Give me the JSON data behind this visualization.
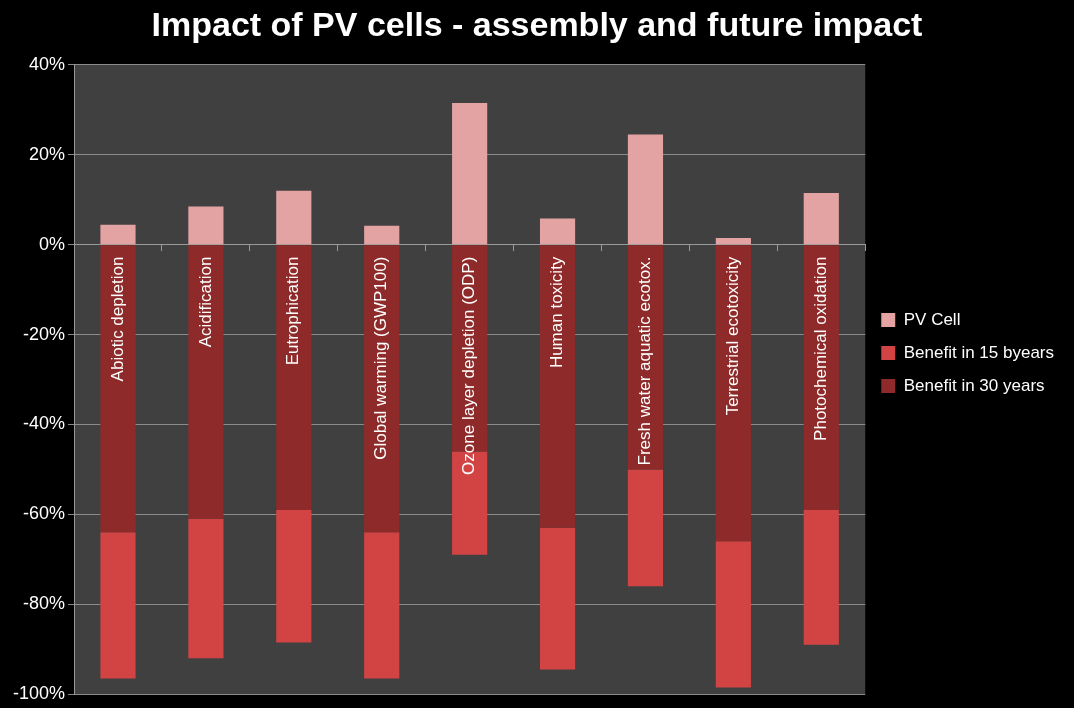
{
  "chart_data": {
    "type": "bar",
    "title": "Impact of PV cells - assembly and future impact",
    "categories": [
      "Abiotic depletion",
      "Acidification",
      "Eutrophication",
      "Global warming (GWP100)",
      "Ozone layer depletion (ODP)",
      "Human toxicity",
      "Fresh water aquatic ecotox.",
      "Terrestrial ecotoxicity",
      "Photochemical oxidation"
    ],
    "series": [
      {
        "name": "Benefit in 30 years",
        "color": "#8e2a2a",
        "values": [
          -64,
          -61,
          -59,
          -64,
          -46,
          -63,
          -50,
          -66,
          -59
        ]
      },
      {
        "name": "Benefit in 15 byears",
        "color": "#d24444",
        "values": [
          -32.5,
          -31,
          -29.5,
          -32.5,
          -23,
          -31.5,
          -26,
          -32.5,
          -30
        ]
      },
      {
        "name": "PV Cell",
        "color": "#e3a3a3",
        "values": [
          4.4,
          8.5,
          12,
          4.2,
          31.5,
          5.8,
          24.5,
          1.5,
          11.5
        ]
      }
    ],
    "stacked": true,
    "ylim": [
      -100,
      40
    ],
    "yticks": [
      {
        "value": -100,
        "label": "-100%"
      },
      {
        "value": -80,
        "label": "-80%"
      },
      {
        "value": -60,
        "label": "-60%"
      },
      {
        "value": -40,
        "label": "-40%"
      },
      {
        "value": -20,
        "label": "-20%"
      },
      {
        "value": 0,
        "label": "0%"
      },
      {
        "value": 20,
        "label": "20%"
      },
      {
        "value": 40,
        "label": "40%"
      }
    ],
    "grid": "y",
    "legend": "right"
  }
}
